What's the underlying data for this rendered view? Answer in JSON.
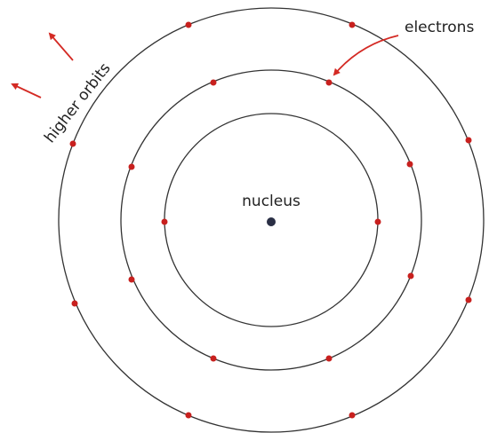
{
  "labels": {
    "electrons": "electrons",
    "higher_orbits": "higher orbits",
    "nucleus": "nucleus"
  }
}
